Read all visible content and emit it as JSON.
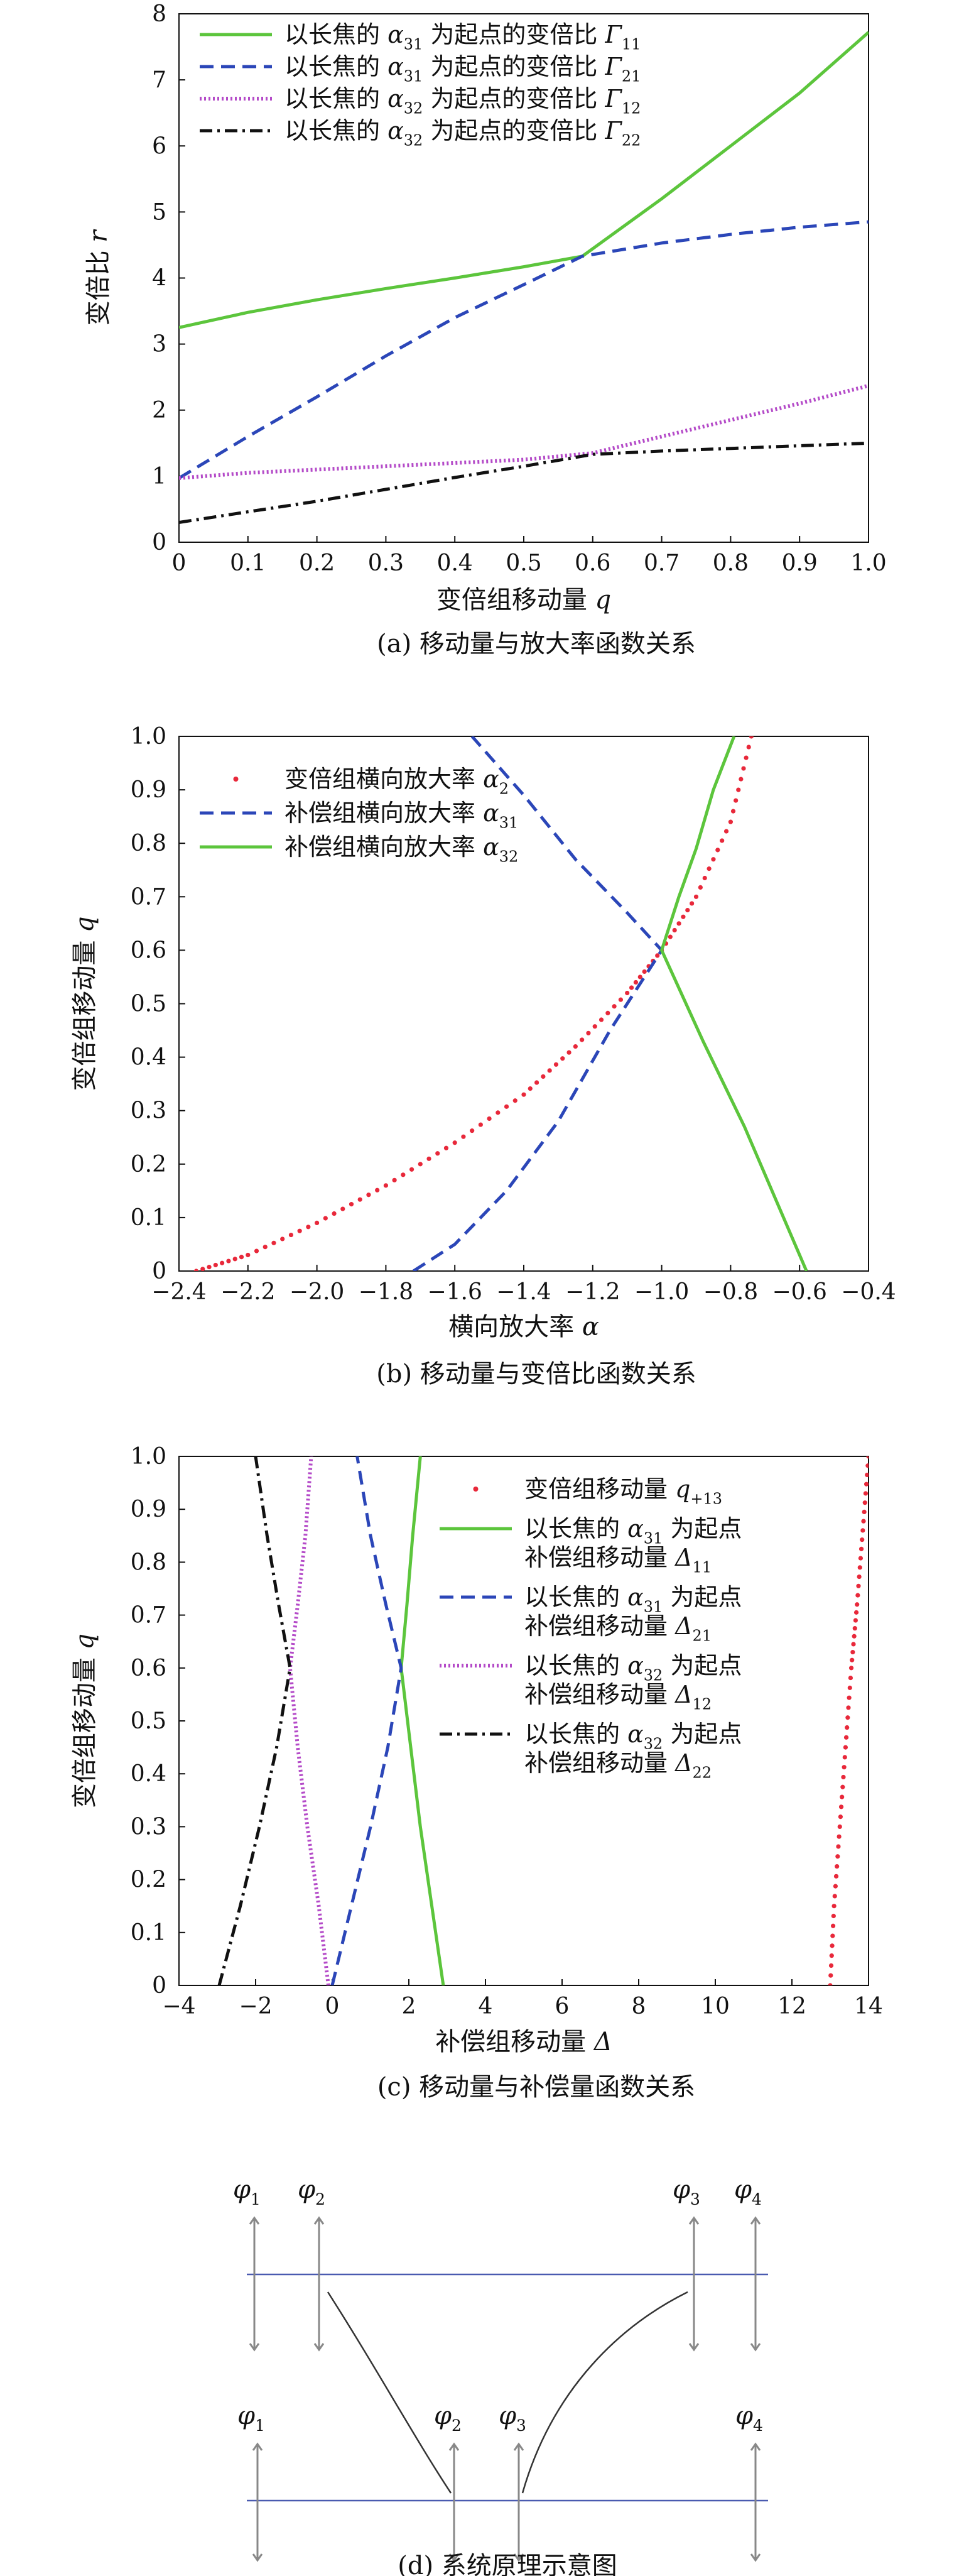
{
  "colors": {
    "green": "#5cc53c",
    "blue": "#2b46b8",
    "purple": "#b44ac8",
    "black": "#111111",
    "red": "#e8283a",
    "optical_axis": "#4a5ab0",
    "element": "#888888"
  },
  "chart_data": [
    {
      "id": "a",
      "type": "line",
      "caption": "(a) 移动量与放大率函数关系",
      "xlabel": "变倍组移动量 q",
      "ylabel": "变倍比 r",
      "xlim": [
        0,
        1.0
      ],
      "ylim": [
        0,
        8
      ],
      "xticks": [
        "0",
        "0.1",
        "0.2",
        "0.3",
        "0.4",
        "0.5",
        "0.6",
        "0.7",
        "0.8",
        "0.9",
        "1.0"
      ],
      "yticks": [
        "0",
        "1",
        "2",
        "3",
        "4",
        "5",
        "6",
        "7",
        "8"
      ],
      "legend_position": "top-left",
      "series": [
        {
          "name": "以长焦的 α31 为起点的变倍比 Γ11",
          "style": "solid",
          "color_key": "green",
          "x": [
            0,
            0.1,
            0.2,
            0.3,
            0.4,
            0.5,
            0.585,
            0.7,
            0.8,
            0.9,
            1.0
          ],
          "y": [
            3.25,
            3.48,
            3.67,
            3.84,
            4.0,
            4.17,
            4.33,
            5.2,
            6.0,
            6.8,
            7.72
          ]
        },
        {
          "name": "以长焦的 α31 为起点的变倍比 Γ21",
          "style": "dashed",
          "color_key": "blue",
          "x": [
            0,
            0.1,
            0.2,
            0.3,
            0.4,
            0.5,
            0.585,
            0.7,
            0.8,
            0.9,
            1.0
          ],
          "y": [
            0.97,
            1.6,
            2.2,
            2.82,
            3.4,
            3.9,
            4.33,
            4.53,
            4.66,
            4.77,
            4.85
          ]
        },
        {
          "name": "以长焦的 α32 为起点的变倍比 Γ12",
          "style": "dotted",
          "color_key": "purple",
          "x": [
            0,
            0.1,
            0.2,
            0.3,
            0.4,
            0.5,
            0.6,
            0.7,
            0.8,
            0.9,
            1.0
          ],
          "y": [
            0.97,
            1.05,
            1.1,
            1.15,
            1.2,
            1.25,
            1.35,
            1.6,
            1.85,
            2.1,
            2.37
          ]
        },
        {
          "name": "以长焦的 α32 为起点的变倍比 Γ22",
          "style": "dashdot",
          "color_key": "black",
          "x": [
            0,
            0.1,
            0.2,
            0.3,
            0.4,
            0.5,
            0.6,
            0.7,
            0.8,
            0.9,
            1.0
          ],
          "y": [
            0.3,
            0.46,
            0.62,
            0.8,
            0.98,
            1.15,
            1.33,
            1.38,
            1.42,
            1.46,
            1.5
          ]
        }
      ],
      "legend_display": [
        {
          "prefix": "以长焦的 ",
          "sym": "α",
          "sub": "31",
          "mid": " 为起点的变倍比 ",
          "sym2": "Γ",
          "sub2": "11"
        },
        {
          "prefix": "以长焦的 ",
          "sym": "α",
          "sub": "31",
          "mid": " 为起点的变倍比 ",
          "sym2": "Γ",
          "sub2": "21"
        },
        {
          "prefix": "以长焦的 ",
          "sym": "α",
          "sub": "32",
          "mid": " 为起点的变倍比 ",
          "sym2": "Γ",
          "sub2": "12"
        },
        {
          "prefix": "以长焦的 ",
          "sym": "α",
          "sub": "32",
          "mid": " 为起点的变倍比 ",
          "sym2": "Γ",
          "sub2": "22"
        }
      ]
    },
    {
      "id": "b",
      "type": "line",
      "caption": "(b) 移动量与变倍比函数关系",
      "xlabel": "横向放大率 α",
      "ylabel": "变倍组移动量 q",
      "xlim": [
        -2.4,
        -0.4
      ],
      "ylim": [
        0,
        1.0
      ],
      "xticks": [
        "−2.4",
        "−2.2",
        "−2.0",
        "−1.8",
        "−1.6",
        "−1.4",
        "−1.2",
        "−1.0",
        "−0.8",
        "−0.6",
        "−0.4"
      ],
      "yticks": [
        "0",
        "0.1",
        "0.2",
        "0.3",
        "0.4",
        "0.5",
        "0.6",
        "0.7",
        "0.8",
        "0.9",
        "1.0"
      ],
      "legend_position": "top-left",
      "series": [
        {
          "name": "变倍组横向放大率 α2",
          "style": "points",
          "color_key": "red",
          "x": [
            -2.35,
            -2.2,
            -2.0,
            -1.8,
            -1.6,
            -1.4,
            -1.25,
            -1.1,
            -1.0,
            -0.9,
            -0.8,
            -0.74
          ],
          "y": [
            0.0,
            0.03,
            0.09,
            0.16,
            0.24,
            0.33,
            0.42,
            0.52,
            0.6,
            0.7,
            0.84,
            1.0
          ]
        },
        {
          "name": "补偿组横向放大率 α31",
          "style": "dashed",
          "color_key": "blue",
          "x": [
            -1.72,
            -1.6,
            -1.45,
            -1.3,
            -1.15,
            -1.0,
            -1.1,
            -1.25,
            -1.4,
            -1.55
          ],
          "y": [
            0.0,
            0.05,
            0.15,
            0.28,
            0.45,
            0.6,
            0.67,
            0.77,
            0.89,
            1.0
          ]
        },
        {
          "name": "补偿组横向放大率 α32",
          "style": "solid",
          "color_key": "green",
          "x": [
            -0.58,
            -0.66,
            -0.76,
            -0.88,
            -1.0,
            -0.95,
            -0.9,
            -0.85,
            -0.79
          ],
          "y": [
            0.0,
            0.12,
            0.27,
            0.43,
            0.6,
            0.7,
            0.79,
            0.9,
            1.0
          ]
        }
      ],
      "legend_display": [
        {
          "prefix": "变倍组横向放大率 ",
          "sym": "α",
          "sub": "2"
        },
        {
          "prefix": "补偿组横向放大率 ",
          "sym": "α",
          "sub": "31"
        },
        {
          "prefix": "补偿组横向放大率 ",
          "sym": "α",
          "sub": "32"
        }
      ]
    },
    {
      "id": "c",
      "type": "line",
      "caption": "(c) 移动量与补偿量函数关系",
      "xlabel": "补偿组移动量 Δ",
      "ylabel": "变倍组移动量 q",
      "xlim": [
        -4,
        14
      ],
      "ylim": [
        0,
        1.0
      ],
      "xticks": [
        "−4",
        "−2",
        "0",
        "2",
        "4",
        "6",
        "8",
        "10",
        "12",
        "14"
      ],
      "yticks": [
        "0",
        "0.1",
        "0.2",
        "0.3",
        "0.4",
        "0.5",
        "0.6",
        "0.7",
        "0.8",
        "0.9",
        "1.0"
      ],
      "legend_position": "top-right",
      "series": [
        {
          "name": "变倍组移动量 q+13",
          "style": "points",
          "color_key": "red",
          "x": [
            13.0,
            13.1,
            13.25,
            13.4,
            13.55,
            13.7,
            13.85,
            14.0
          ],
          "y": [
            0.0,
            0.15,
            0.3,
            0.45,
            0.6,
            0.72,
            0.86,
            1.0
          ]
        },
        {
          "name": "以长焦的 α31 为起点 补偿组移动量 Δ11",
          "style": "solid",
          "color_key": "green",
          "x": [
            2.9,
            2.6,
            2.3,
            2.05,
            1.8,
            1.95,
            2.1,
            2.3
          ],
          "y": [
            0.0,
            0.15,
            0.3,
            0.45,
            0.6,
            0.72,
            0.85,
            1.0
          ]
        },
        {
          "name": "以长焦的 α31 为起点 补偿组移动量 Δ21",
          "style": "dashed",
          "color_key": "blue",
          "x": [
            0.0,
            0.5,
            1.0,
            1.45,
            1.8,
            1.4,
            1.0,
            0.65
          ],
          "y": [
            0.0,
            0.15,
            0.3,
            0.45,
            0.6,
            0.72,
            0.85,
            1.0
          ]
        },
        {
          "name": "以长焦的 α32 为起点 补偿组移动量 Δ12",
          "style": "dotted",
          "color_key": "purple",
          "x": [
            -0.1,
            -0.35,
            -0.65,
            -0.9,
            -1.1,
            -0.9,
            -0.7,
            -0.55
          ],
          "y": [
            0.0,
            0.15,
            0.3,
            0.45,
            0.6,
            0.72,
            0.85,
            1.0
          ]
        },
        {
          "name": "以长焦的 α32 为起点 补偿组移动量 Δ22",
          "style": "dashdot",
          "color_key": "black",
          "x": [
            -2.95,
            -2.4,
            -1.9,
            -1.45,
            -1.1,
            -1.4,
            -1.7,
            -2.0
          ],
          "y": [
            0.0,
            0.15,
            0.3,
            0.45,
            0.6,
            0.72,
            0.85,
            1.0
          ]
        }
      ],
      "legend_display": [
        {
          "lines": [
            {
              "prefix": "变倍组移动量 ",
              "sym": "q",
              "sub": "+13"
            }
          ]
        },
        {
          "lines": [
            {
              "prefix": "以长焦的 ",
              "sym": "α",
              "sub": "31",
              "mid": " 为起点"
            },
            {
              "prefix": "补偿组移动量 ",
              "sym": "Δ",
              "sub": "11"
            }
          ]
        },
        {
          "lines": [
            {
              "prefix": "以长焦的 ",
              "sym": "α",
              "sub": "31",
              "mid": " 为起点"
            },
            {
              "prefix": "补偿组移动量 ",
              "sym": "Δ",
              "sub": "21"
            }
          ]
        },
        {
          "lines": [
            {
              "prefix": "以长焦的 ",
              "sym": "α",
              "sub": "32",
              "mid": " 为起点"
            },
            {
              "prefix": "补偿组移动量 ",
              "sym": "Δ",
              "sub": "12"
            }
          ]
        },
        {
          "lines": [
            {
              "prefix": "以长焦的 ",
              "sym": "α",
              "sub": "32",
              "mid": " 为起点"
            },
            {
              "prefix": "补偿组移动量 ",
              "sym": "Δ",
              "sub": "22"
            }
          ]
        }
      ]
    }
  ],
  "diagram": {
    "caption": "(d) 系统原理示意图",
    "top_labels": [
      {
        "sym": "φ",
        "sub": "1"
      },
      {
        "sym": "φ",
        "sub": "2"
      },
      {
        "sym": "φ",
        "sub": "3"
      },
      {
        "sym": "φ",
        "sub": "4"
      }
    ],
    "bottom_labels": [
      {
        "sym": "φ",
        "sub": "1"
      },
      {
        "sym": "φ",
        "sub": "2"
      },
      {
        "sym": "φ",
        "sub": "3"
      },
      {
        "sym": "φ",
        "sub": "4"
      }
    ]
  }
}
